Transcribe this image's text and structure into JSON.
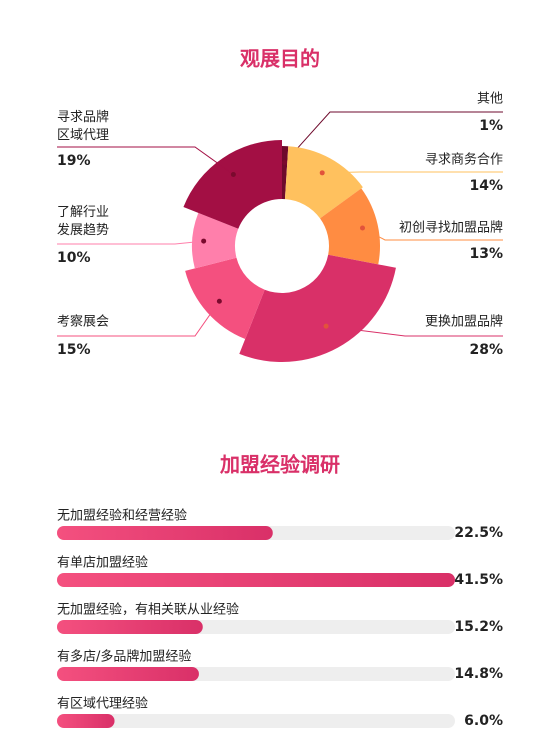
{
  "chart_data": [
    {
      "type": "pie",
      "title": "观展目的",
      "categories": [
        "其他",
        "寻求商务合作",
        "初创寻找加盟品牌",
        "更换加盟品牌",
        "考察展会",
        "了解行业\n发展趋势",
        "寻求品牌\n区域代理"
      ],
      "values": [
        1,
        14,
        13,
        28,
        15,
        10,
        19
      ],
      "value_labels": [
        "1%",
        "14%",
        "13%",
        "28%",
        "15%",
        "10%",
        "19%"
      ],
      "colors": [
        "#6e0a2c",
        "#ffc15e",
        "#ff8c42",
        "#d93068",
        "#f4507f",
        "#ff7fab",
        "#a30f44"
      ]
    },
    {
      "type": "bar",
      "title": "加盟经验调研",
      "categories": [
        "无加盟经验和经营经验",
        "有单店加盟经验",
        "无加盟经验，有相关联从业经验",
        "有多店/多品牌加盟经验",
        "有区域代理经验"
      ],
      "values": [
        22.5,
        41.5,
        15.2,
        14.8,
        6.0
      ],
      "value_labels": [
        "22.5%",
        "41.5%",
        "15.2%",
        "14.8%",
        "6.0%"
      ],
      "colors": [
        "#f4507f",
        "#d93068"
      ],
      "track_color": "#eeeeee"
    }
  ]
}
